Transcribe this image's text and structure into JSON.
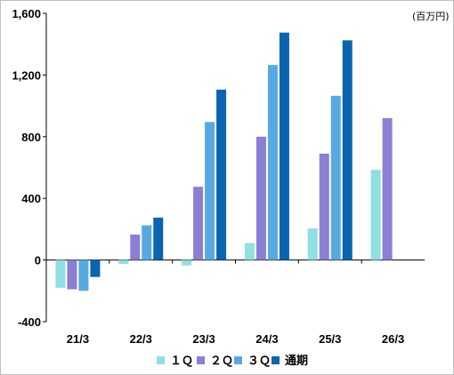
{
  "chart_data": {
    "type": "bar",
    "unit_label": "(百万円)",
    "categories": [
      "21/3",
      "22/3",
      "23/3",
      "24/3",
      "25/3",
      "26/3"
    ],
    "series": [
      {
        "name": "1Q",
        "color": "#8fdfe3",
        "values": [
          -180,
          -25,
          -35,
          110,
          205,
          585
        ]
      },
      {
        "name": "2Q",
        "color": "#8b7fd4",
        "values": [
          -190,
          165,
          475,
          800,
          690,
          920
        ]
      },
      {
        "name": "3Q",
        "color": "#58a9e2",
        "values": [
          -200,
          225,
          895,
          1265,
          1065,
          null
        ]
      },
      {
        "name": "通期",
        "color": "#0b64b0",
        "values": [
          -110,
          275,
          1105,
          1475,
          1425,
          null
        ]
      }
    ],
    "y_ticks": [
      "1,600",
      "1,200",
      "800",
      "400",
      "0",
      "-400"
    ],
    "ylim": [
      -400,
      1600
    ],
    "legend": {
      "position": "bottom",
      "labels": [
        "１Ｑ",
        "２Ｑ",
        "３Ｑ",
        "通期"
      ]
    }
  }
}
